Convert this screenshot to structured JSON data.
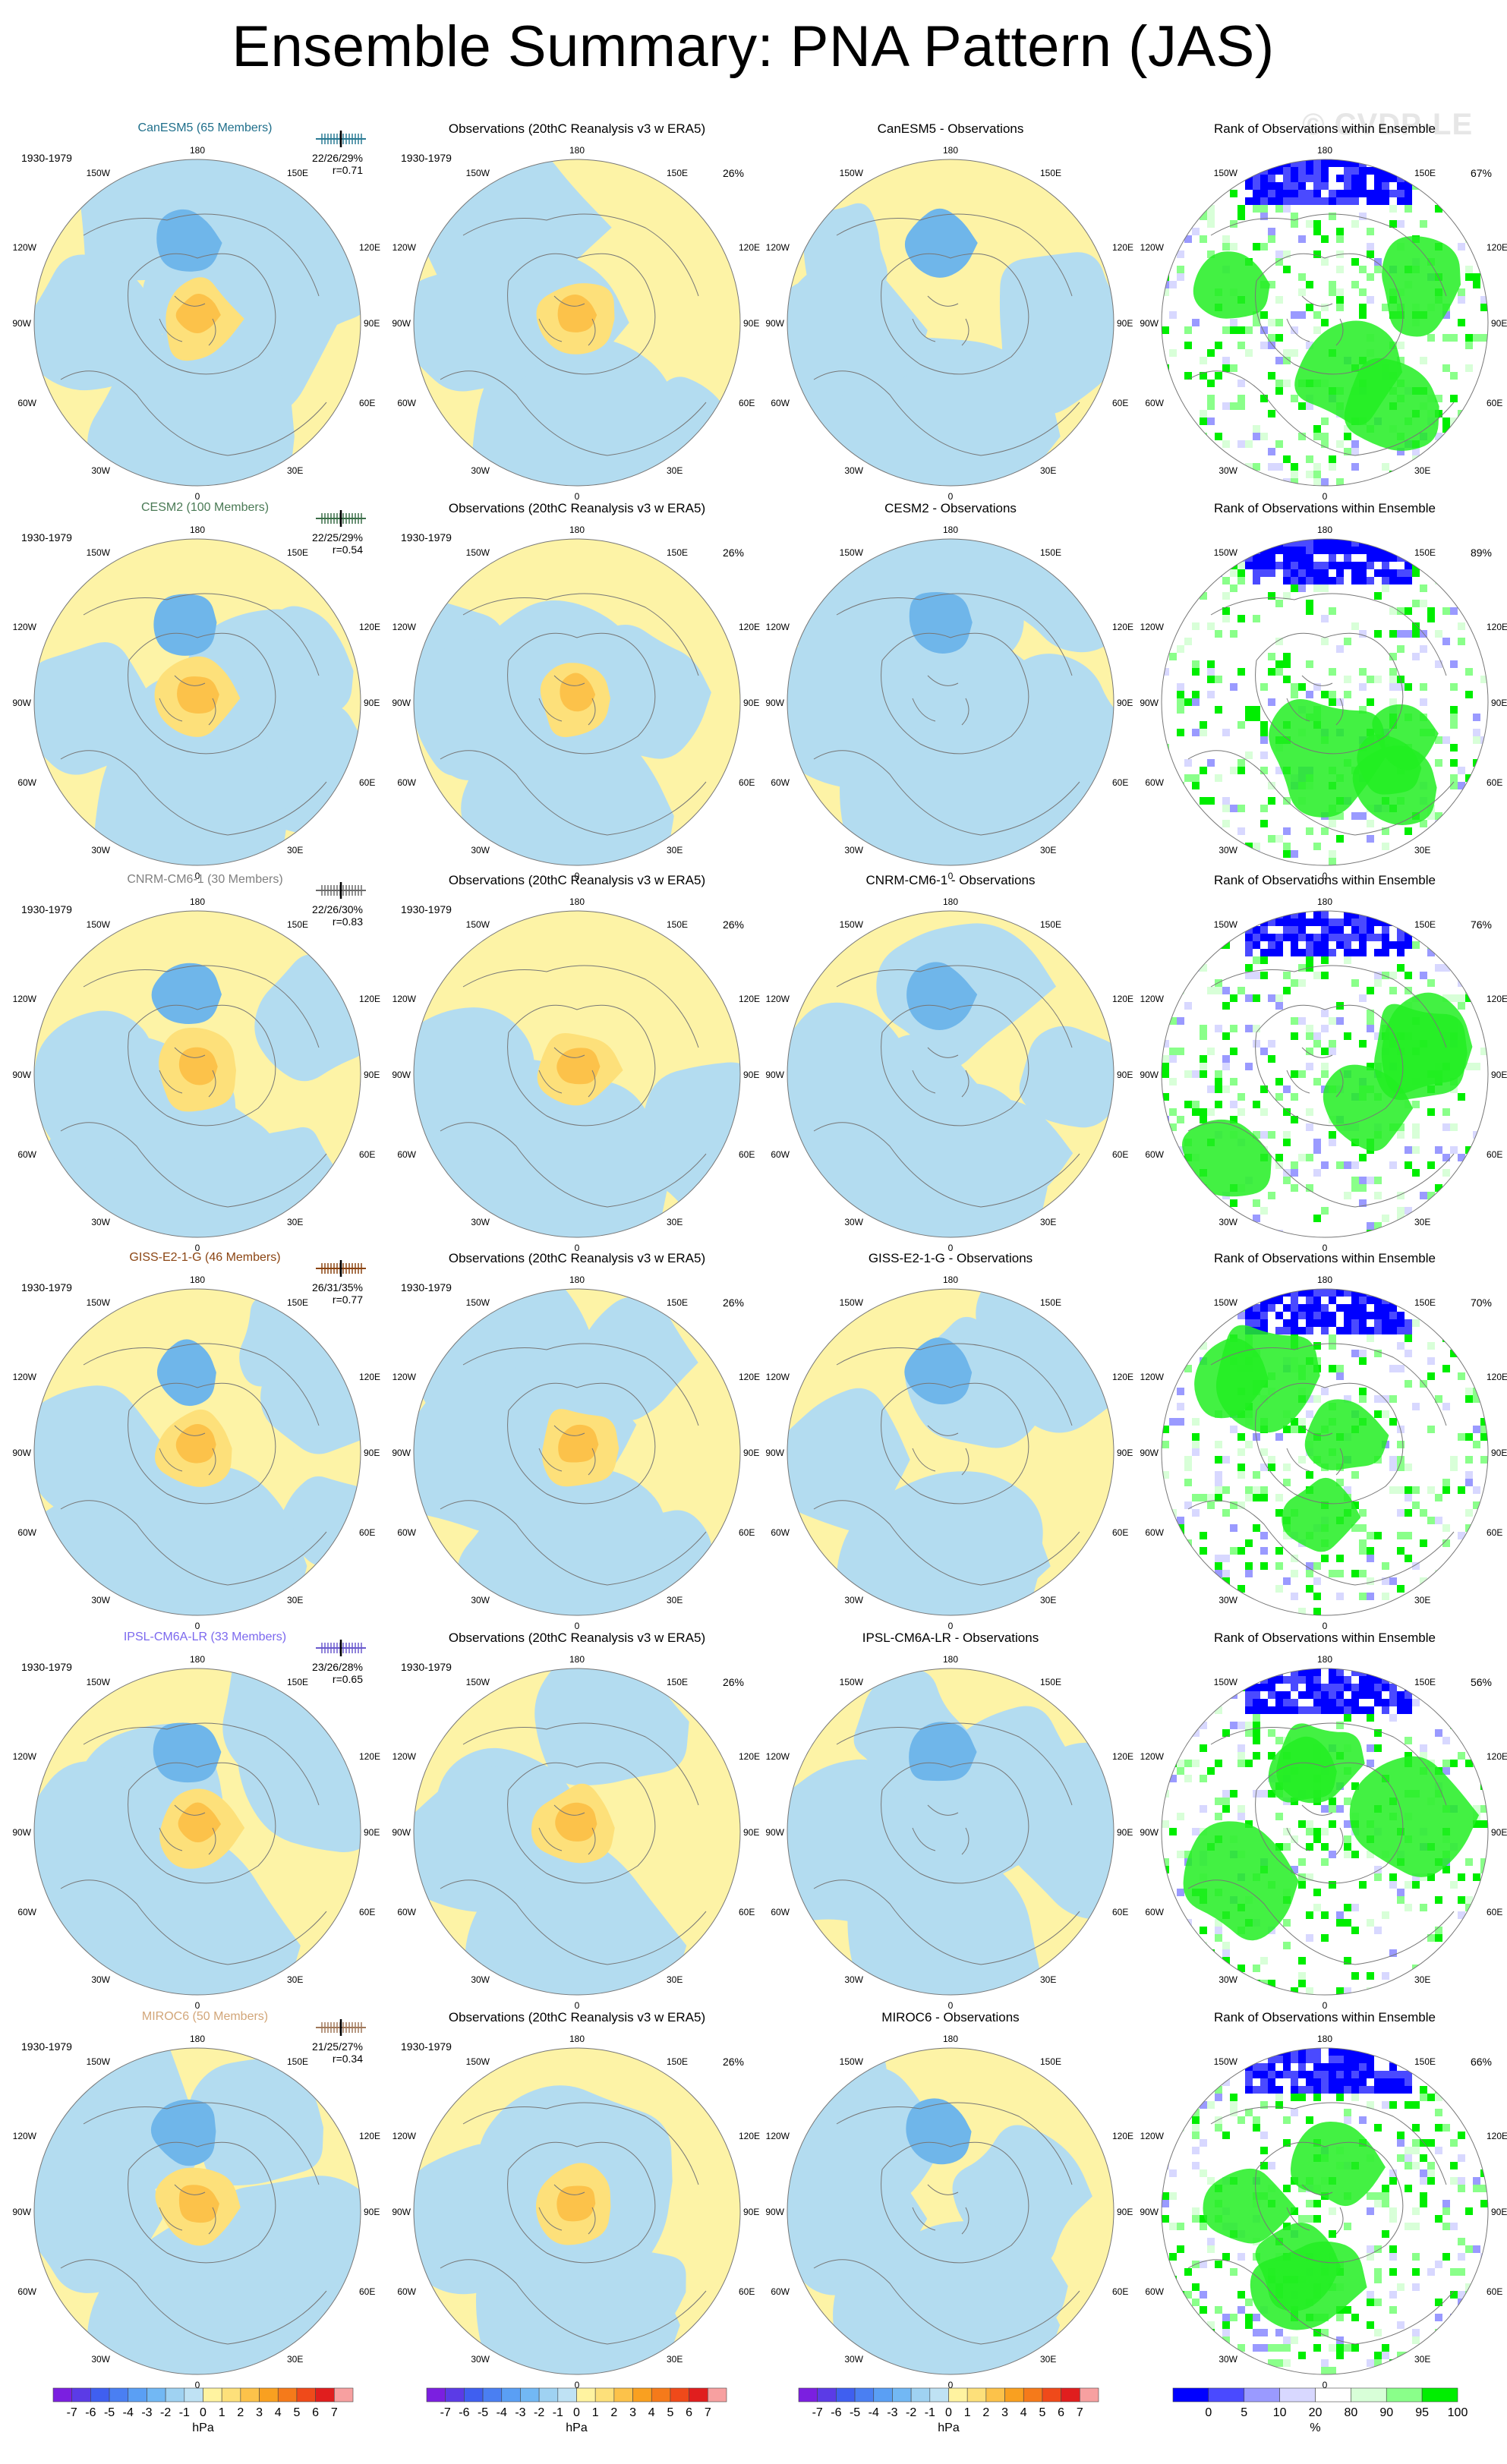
{
  "title": "Ensemble Summary: PNA Pattern (JAS)",
  "watermark": "© CVDP-LE",
  "lon_labels": {
    "top": "180",
    "bottom": "0",
    "l1": "150W",
    "r1": "150E",
    "l2": "120W",
    "r2": "120E",
    "l3": "90W",
    "r3": "90E",
    "l4": "60W",
    "r4": "60E",
    "l5": "30W",
    "r5": "30E"
  },
  "period": "1930-1979",
  "obs_title": "Observations (20thC Reanalysis v3 w ERA5)",
  "obs_pct": "26%",
  "rank_title": "Rank of Observations within Ensemble",
  "rows": [
    {
      "model": "CanESM5 (65 Members)",
      "color": "#1f6f8b",
      "stats": "22/26/29%",
      "r": "r=0.71",
      "diff": "CanESM5 - Observations",
      "rank_pct": "67%",
      "shade": "#2a7a94"
    },
    {
      "model": "CESM2 (100 Members)",
      "color": "#4a7a55",
      "stats": "22/25/29%",
      "r": "r=0.54",
      "diff": "CESM2 - Observations",
      "rank_pct": "89%",
      "shade": "#3b6e48"
    },
    {
      "model": "CNRM-CM6-1 (30 Members)",
      "color": "#808080",
      "stats": "22/26/30%",
      "r": "r=0.83",
      "diff": "CNRM-CM6-1 - Observations",
      "rank_pct": "76%",
      "shade": "#6a6a6a"
    },
    {
      "model": "GISS-E2-1-G (46 Members)",
      "color": "#8b4513",
      "stats": "26/31/35%",
      "r": "r=0.77",
      "diff": "GISS-E2-1-G - Observations",
      "rank_pct": "70%",
      "shade": "#8b4513"
    },
    {
      "model": "IPSL-CM6A-LR (33 Members)",
      "color": "#7b68ee",
      "stats": "23/26/28%",
      "r": "r=0.65",
      "diff": "IPSL-CM6A-LR - Observations",
      "rank_pct": "56%",
      "shade": "#6a5acd"
    },
    {
      "model": "MIROC6 (50 Members)",
      "color": "#d2a679",
      "stats": "21/25/27%",
      "r": "r=0.34",
      "diff": "MIROC6 - Observations",
      "rank_pct": "66%",
      "shade": "#a0785a"
    }
  ],
  "colorbar_hpa": {
    "labels": [
      "-7",
      "-6",
      "-5",
      "-4",
      "-3",
      "-2",
      "-1",
      "0",
      "1",
      "2",
      "3",
      "4",
      "5",
      "6",
      "7"
    ],
    "unit": "hPa",
    "colors": [
      "#7b1fe0",
      "#5b3be6",
      "#3f5ff0",
      "#4a7ff2",
      "#5a9ff4",
      "#72b8f4",
      "#9fd2f2",
      "#bfe2f4",
      "#fff3a0",
      "#fde07a",
      "#fcc24a",
      "#f9a020",
      "#f57a1a",
      "#ef4a1a",
      "#e01e1e",
      "#f7a0a0"
    ]
  },
  "colorbar_pct": {
    "labels": [
      "0",
      "5",
      "10",
      "20",
      "80",
      "90",
      "95",
      "100"
    ],
    "unit": "%",
    "colors": [
      "#0000ff",
      "#4a4aff",
      "#9a9aff",
      "#d8d8ff",
      "#ffffff",
      "#d8ffd8",
      "#8aff8a",
      "#00ee00"
    ]
  }
}
